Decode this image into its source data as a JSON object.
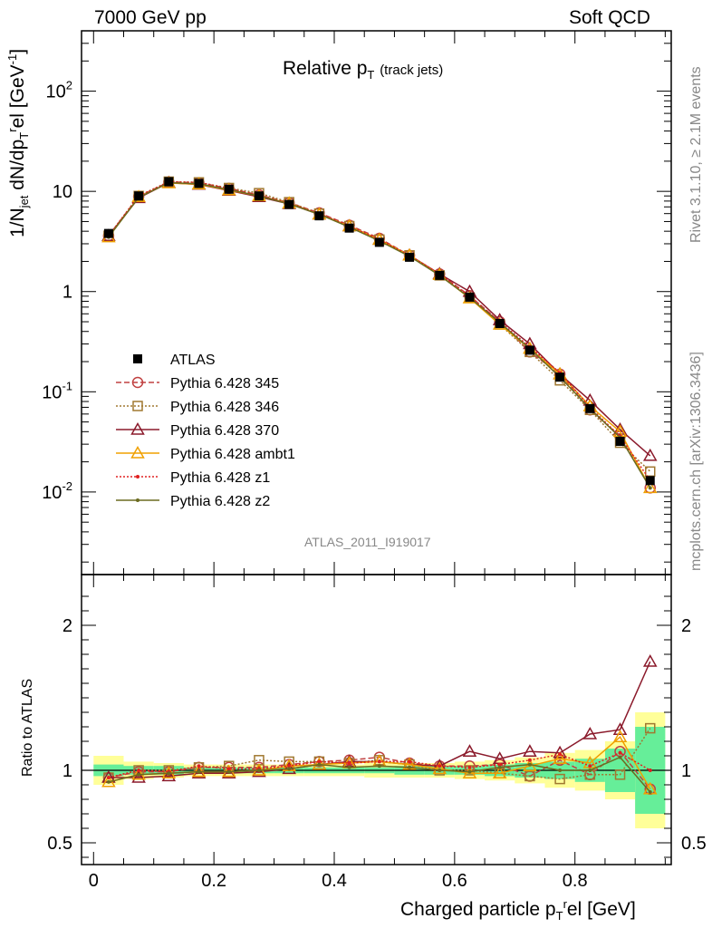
{
  "header": {
    "left": "7000 GeV pp",
    "right": "Soft QCD"
  },
  "side": {
    "rivet": "Rivet 3.1.10, ≥ 2.1M events",
    "mcplots": "mcplots.cern.ch [arXiv:1306.3436]"
  },
  "plot": {
    "title_main": "Relative p",
    "title_sub": "T",
    "title_extra": "(track jets)",
    "analysis_id": "ATLAS_2011_I919017",
    "ylabel_main": "1/N",
    "ylabel_jet": "jet",
    "ylabel_mid": " dN/dp",
    "ylabel_T": "T",
    "ylabel_r": "r",
    "ylabel_el": "el [GeV",
    "ylabel_exp": "-1",
    "ylabel_end": "]",
    "ratio_ylabel": "Ratio to ATLAS",
    "xlabel_a": "Charged particle p",
    "xlabel_T": "T",
    "xlabel_r": "r",
    "xlabel_b": "el [GeV]"
  },
  "legend": [
    {
      "label": "ATLAS",
      "color": "#000000",
      "marker": "square-filled",
      "dash": ""
    },
    {
      "label": "Pythia 6.428 345",
      "color": "#c04040",
      "marker": "circle",
      "dash": "6,3"
    },
    {
      "label": "Pythia 6.428 346",
      "color": "#a07830",
      "marker": "square",
      "dash": "2,2"
    },
    {
      "label": "Pythia 6.428 370",
      "color": "#8b1a2b",
      "marker": "triangle",
      "dash": ""
    },
    {
      "label": "Pythia 6.428 ambt1",
      "color": "#f0a000",
      "marker": "triangle",
      "dash": ""
    },
    {
      "label": "Pythia 6.428 z1",
      "color": "#e02020",
      "marker": "dot",
      "dash": "2,2"
    },
    {
      "label": "Pythia 6.428 z2",
      "color": "#6b6b20",
      "marker": "dot",
      "dash": ""
    }
  ],
  "chart_data": {
    "type": "line",
    "x": [
      0.025,
      0.075,
      0.125,
      0.175,
      0.225,
      0.275,
      0.325,
      0.375,
      0.425,
      0.475,
      0.525,
      0.575,
      0.625,
      0.675,
      0.725,
      0.775,
      0.825,
      0.875,
      0.925
    ],
    "xlim": [
      -0.02,
      0.96
    ],
    "ylim_main": [
      0.0015,
      400
    ],
    "yscale_main": "log",
    "ylim_ratio": [
      0.35,
      2.35
    ],
    "xticks": [
      "0",
      "0.2",
      "0.4",
      "0.6",
      "0.8"
    ],
    "yticks_main": [
      "10^-2",
      "10^-1",
      "1",
      "10",
      "10^2"
    ],
    "yticks_ratio": [
      "0.5",
      "1",
      "2"
    ],
    "data": {
      "name": "ATLAS",
      "values": [
        3.8,
        9.0,
        12.5,
        12.0,
        10.5,
        9.0,
        7.4,
        5.7,
        4.3,
        3.1,
        2.2,
        1.45,
        0.88,
        0.48,
        0.26,
        0.14,
        0.068,
        0.032,
        0.013
      ]
    },
    "series": [
      {
        "name": "Pythia 6.428 345",
        "values": [
          3.6,
          8.9,
          12.4,
          12.2,
          10.7,
          9.2,
          7.7,
          6.1,
          4.6,
          3.4,
          2.3,
          1.5,
          0.91,
          0.5,
          0.25,
          0.15,
          0.066,
          0.036,
          0.011
        ],
        "ratio": [
          0.95,
          0.99,
          0.99,
          1.02,
          1.02,
          1.02,
          1.04,
          1.06,
          1.07,
          1.09,
          1.05,
          1.03,
          1.03,
          1.04,
          0.96,
          1.07,
          0.97,
          1.13,
          0.87
        ]
      },
      {
        "name": "Pythia 6.428 346",
        "values": [
          3.6,
          9.0,
          12.5,
          12.3,
          10.8,
          9.6,
          7.8,
          6.0,
          4.5,
          3.3,
          2.3,
          1.45,
          0.87,
          0.47,
          0.25,
          0.13,
          0.066,
          0.031,
          0.016
        ],
        "ratio": [
          0.95,
          1.0,
          1.0,
          1.02,
          1.03,
          1.07,
          1.06,
          1.06,
          1.05,
          1.07,
          1.04,
          1.0,
          1.0,
          0.98,
          0.96,
          0.94,
          0.97,
          0.97,
          1.29
        ]
      },
      {
        "name": "Pythia 6.428 370",
        "values": [
          3.6,
          8.6,
          12.2,
          11.7,
          10.2,
          8.8,
          7.5,
          5.9,
          4.5,
          3.3,
          2.3,
          1.5,
          1.0,
          0.52,
          0.3,
          0.15,
          0.082,
          0.042,
          0.023
        ],
        "ratio": [
          0.95,
          0.95,
          0.96,
          0.98,
          0.98,
          0.99,
          1.01,
          1.04,
          1.06,
          1.06,
          1.04,
          1.03,
          1.13,
          1.08,
          1.13,
          1.12,
          1.25,
          1.28,
          1.75
        ]
      },
      {
        "name": "Pythia 6.428 ambt1",
        "values": [
          3.5,
          8.8,
          12.1,
          11.8,
          10.3,
          9.0,
          7.6,
          5.9,
          4.5,
          3.3,
          2.3,
          1.47,
          0.86,
          0.47,
          0.27,
          0.15,
          0.072,
          0.04,
          0.011
        ],
        "ratio": [
          0.92,
          0.97,
          0.98,
          0.99,
          0.99,
          1.0,
          1.03,
          1.04,
          1.05,
          1.06,
          1.04,
          1.01,
          0.98,
          0.98,
          1.03,
          1.08,
          1.05,
          1.23,
          0.87
        ]
      },
      {
        "name": "Pythia 6.428 z1",
        "values": [
          3.6,
          9.0,
          12.4,
          12.3,
          10.6,
          9.1,
          7.6,
          6.0,
          4.5,
          3.3,
          2.3,
          1.5,
          0.9,
          0.5,
          0.28,
          0.155,
          0.07,
          0.036,
          0.013
        ],
        "ratio": [
          0.95,
          1.0,
          0.99,
          1.03,
          1.01,
          1.01,
          1.03,
          1.06,
          1.05,
          1.06,
          1.06,
          1.03,
          1.02,
          1.04,
          1.07,
          1.11,
          1.03,
          1.12,
          1.0
        ]
      },
      {
        "name": "Pythia 6.428 z2",
        "values": [
          3.5,
          8.7,
          12.2,
          11.9,
          10.4,
          9.0,
          7.5,
          5.9,
          4.4,
          3.2,
          2.25,
          1.45,
          0.87,
          0.49,
          0.27,
          0.14,
          0.068,
          0.035,
          0.011
        ],
        "ratio": [
          0.92,
          0.97,
          0.98,
          0.99,
          0.99,
          1.0,
          1.01,
          1.04,
          1.02,
          1.03,
          1.02,
          1.0,
          0.99,
          1.02,
          1.04,
          1.0,
          1.0,
          1.09,
          0.85
        ]
      }
    ],
    "band_stat": [
      0.04,
      0.03,
      0.03,
      0.02,
      0.02,
      0.02,
      0.02,
      0.02,
      0.02,
      0.02,
      0.03,
      0.03,
      0.03,
      0.04,
      0.05,
      0.06,
      0.08,
      0.15,
      0.3
    ],
    "band_total": [
      0.1,
      0.06,
      0.05,
      0.04,
      0.04,
      0.04,
      0.04,
      0.04,
      0.04,
      0.05,
      0.05,
      0.05,
      0.06,
      0.07,
      0.09,
      0.12,
      0.14,
      0.2,
      0.4
    ],
    "colors": {
      "band_stat": "#66ee99",
      "band_total": "#ffff99"
    }
  }
}
